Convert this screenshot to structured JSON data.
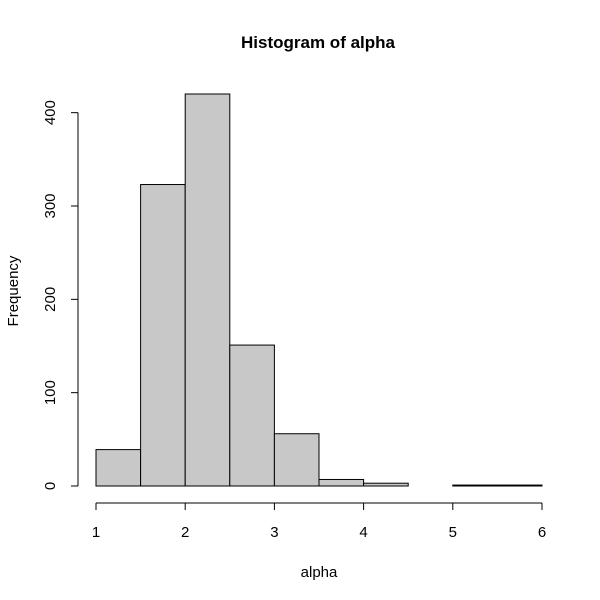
{
  "chart_data": {
    "type": "bar",
    "title": "Histogram of alpha",
    "xlabel": "alpha",
    "ylabel": "Frequency",
    "bins": [
      [
        1.0,
        1.5
      ],
      [
        1.5,
        2.0
      ],
      [
        2.0,
        2.5
      ],
      [
        2.5,
        3.0
      ],
      [
        3.0,
        3.5
      ],
      [
        3.5,
        4.0
      ],
      [
        4.0,
        4.5
      ],
      [
        4.5,
        5.0
      ],
      [
        5.0,
        5.5
      ],
      [
        5.5,
        6.0
      ]
    ],
    "values": [
      39,
      323,
      420,
      151,
      56,
      7,
      3,
      0,
      1,
      1
    ],
    "xlim": [
      1,
      6
    ],
    "ylim": [
      0,
      420
    ],
    "x_ticks": [
      1,
      2,
      3,
      4,
      5,
      6
    ],
    "y_ticks": [
      0,
      100,
      200,
      300,
      400
    ],
    "grid": false,
    "bar_color": "#c8c8c8",
    "edge_color": "#000000"
  }
}
